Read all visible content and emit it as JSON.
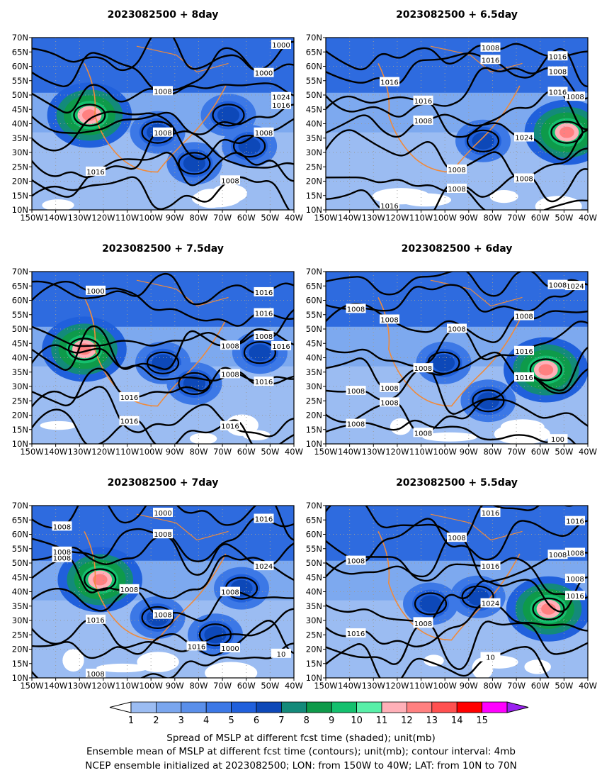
{
  "panels": [
    {
      "title": "2023082500  +  8day",
      "centers": [
        [
          22,
          60
        ],
        [
          48,
          50
        ],
        [
          75,
          60
        ],
        [
          62,
          32
        ],
        [
          83,
          42
        ]
      ],
      "labels": [
        "1016",
        "1000",
        "1024",
        "1016",
        "1008",
        "1008",
        "1016",
        "1008",
        "1000",
        "1008"
      ]
    },
    {
      "title": "2023082500  +  6.5day",
      "centers": [
        [
          92,
          50
        ],
        [
          60,
          45
        ]
      ],
      "labels": [
        "1016",
        "1016",
        "1008",
        "1016",
        "1024",
        "1008",
        "1008",
        "1016",
        "1008",
        "1016",
        "1008",
        "1016",
        "1008",
        "1008"
      ]
    },
    {
      "title": "2023082500  +  7.5day",
      "centers": [
        [
          20,
          60
        ],
        [
          50,
          52
        ],
        [
          87,
          58
        ],
        [
          62,
          40
        ]
      ],
      "labels": [
        "1000",
        "1016",
        "1024",
        "1016",
        "1008",
        "1016",
        "1016",
        "1016",
        "1016",
        "1000",
        "1008",
        "1008",
        "1016"
      ]
    },
    {
      "title": "2023082500  +  6day",
      "centers": [
        [
          84,
          48
        ],
        [
          45,
          52
        ],
        [
          62,
          30
        ]
      ],
      "labels": [
        "1016",
        "1024",
        "1008",
        "1008",
        "1016",
        "1008",
        "1008",
        "1008",
        "1008",
        "1008",
        "1008",
        "1016",
        "1008",
        "1008",
        "1008",
        "100"
      ]
    },
    {
      "title": "2023082500  +  7day",
      "centers": [
        [
          26,
          62
        ],
        [
          80,
          57
        ],
        [
          48,
          40
        ],
        [
          70,
          30
        ]
      ],
      "labels": [
        "1000",
        "1016",
        "1024",
        "1008",
        "1008",
        "1016",
        "1000",
        "1008",
        "1008",
        "1008",
        "1008",
        "1008",
        "1008",
        "1016",
        "10"
      ]
    },
    {
      "title": "2023082500  +  5.5day",
      "centers": [
        [
          85,
          45
        ],
        [
          58,
          52
        ],
        [
          40,
          48
        ]
      ],
      "labels": [
        "1016",
        "1008",
        "1008",
        "1016",
        "1008",
        "1024",
        "1016",
        "1008",
        "1008",
        "1016",
        "1008",
        "1016",
        "1008",
        "1016",
        "1008",
        "10"
      ]
    }
  ],
  "axes": {
    "lat_ticks": [
      "70N",
      "65N",
      "60N",
      "55N",
      "50N",
      "45N",
      "40N",
      "35N",
      "30N",
      "25N",
      "20N",
      "15N",
      "10N"
    ],
    "lon_ticks": [
      "150W",
      "140W",
      "130W",
      "120W",
      "110W",
      "100W",
      "90W",
      "80W",
      "70W",
      "60W",
      "50W",
      "40W"
    ]
  },
  "colorbar": {
    "labels": [
      "1",
      "2",
      "3",
      "4",
      "5",
      "6",
      "7",
      "8",
      "9",
      "10",
      "11",
      "12",
      "13",
      "14",
      "15"
    ],
    "colors": [
      "#ffffff",
      "#9bbcf2",
      "#7aa6ee",
      "#5a8fea",
      "#3c78e6",
      "#2060dc",
      "#0d48b8",
      "#138a7a",
      "#0e9a4a",
      "#14c06e",
      "#58efa8",
      "#ffb0b8",
      "#ff8080",
      "#ff5050",
      "#ff0000",
      "#ff00ff",
      "#9a20f0"
    ]
  },
  "caption": [
    "Spread of MSLP at different fcst time (shaded); unit(mb)",
    "Ensemble mean of MSLP at different fcst time (contours); unit(mb); contour interval: 4mb",
    "NCEP ensemble initialized at 2023082500; LON: from 150W to 40W; LAT: from 10N to 70N"
  ]
}
